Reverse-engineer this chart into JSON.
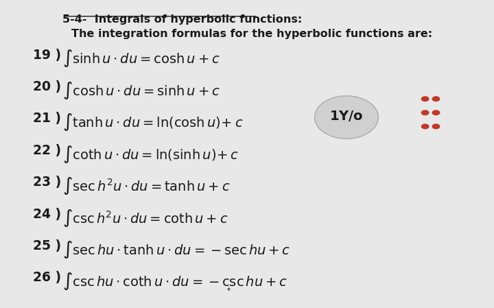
{
  "bg_color": "#e8e8e8",
  "title_line1": "5-4-  Integrals of hyperbolic functions:",
  "title_line2": "The integration formulas for the hyperbolic functions are:",
  "formulas": [
    {
      "num": "19 )",
      "latex": "$\\int \\sinh u \\cdot du = \\cosh u + c$"
    },
    {
      "num": "20 )",
      "latex": "$\\int \\cosh u \\cdot du = \\sinh u + c$"
    },
    {
      "num": "21 )",
      "latex": "$\\int \\tanh u \\cdot du = \\ln\\!\\left(\\cosh u\\right)\\!+c$"
    },
    {
      "num": "22 )",
      "latex": "$\\int \\coth u \\cdot du = \\ln\\!\\left(\\sinh u\\right)\\!+c$"
    },
    {
      "num": "23 )",
      "latex": "$\\int \\sec h^{2} u \\cdot du = \\tanh u + c$"
    },
    {
      "num": "24 )",
      "latex": "$\\int \\csc h^{2} u \\cdot du = \\coth u + c$"
    },
    {
      "num": "25 )",
      "latex": "$\\int \\sec hu \\cdot \\tanh u \\cdot du = -\\sec hu + c$"
    },
    {
      "num": "26 )",
      "latex": "$\\int \\csc hu \\cdot \\coth u \\cdot du = -\\csc hu + c$"
    }
  ],
  "badge_text": "$\\mathsf{\\mathbf{1Y/o}}$",
  "dot_color": "#c0392b",
  "text_color": "#1a1a1a",
  "formula_fontsize": 13.5,
  "title1_fontsize": 11.5,
  "title2_fontsize": 11.5
}
